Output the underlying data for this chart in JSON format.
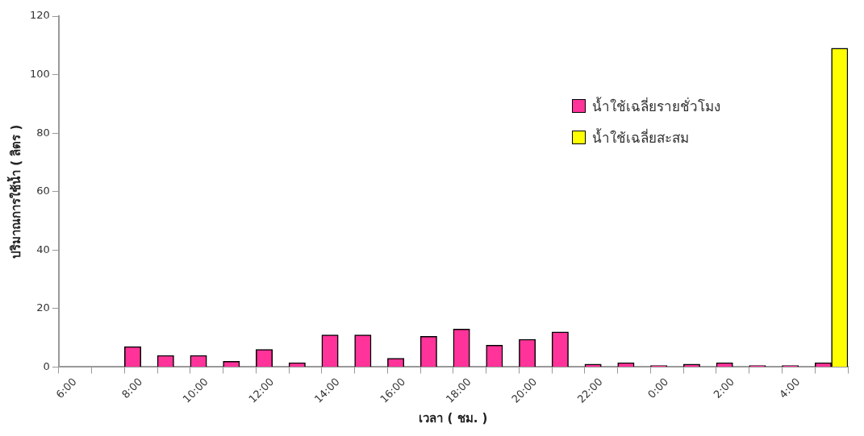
{
  "chart_data": {
    "type": "bar",
    "xlabel": "เวลา ( ชม. )",
    "ylabel": "ปริมาณการใช้น้ำ ( ลิตร )",
    "categories": [
      "6:00",
      null,
      "8:00",
      null,
      "10:00",
      null,
      "12:00",
      null,
      "14:00",
      null,
      "16:00",
      null,
      "18:00",
      null,
      "20:00",
      null,
      "22:00",
      null,
      "0:00",
      null,
      "2:00",
      null,
      "4:00",
      null
    ],
    "series": [
      {
        "name": "น้ำใช้เฉลี่ยรายชั่วโมง",
        "color": "#ff3399",
        "values": [
          null,
          null,
          7,
          4,
          4,
          2,
          6,
          1.5,
          11,
          11,
          3,
          10.5,
          13,
          7.5,
          9.5,
          12,
          1,
          1.5,
          0.5,
          1,
          1.5,
          0.5,
          0.5,
          1.5
        ]
      },
      {
        "name": "น้ำใช้เฉลี่ยสะสม",
        "color": "#ffff00",
        "values": [
          null,
          null,
          null,
          null,
          null,
          null,
          null,
          null,
          null,
          null,
          null,
          null,
          null,
          null,
          null,
          null,
          null,
          null,
          null,
          null,
          null,
          null,
          null,
          109
        ]
      }
    ],
    "ylim": [
      0,
      120
    ],
    "yticks": [
      0,
      20,
      40,
      60,
      80,
      100,
      120
    ],
    "grid": false,
    "legend": "top right"
  }
}
